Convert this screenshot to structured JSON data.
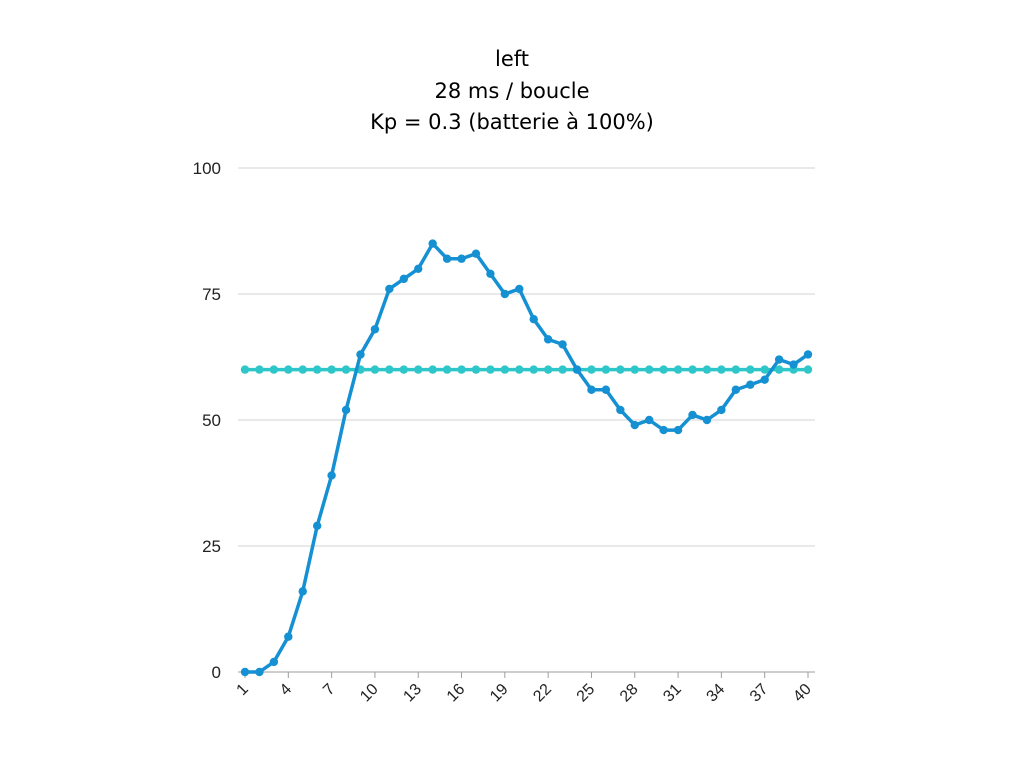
{
  "chart_data": {
    "type": "line",
    "title": [
      "left",
      "28 ms / boucle",
      "Kp = 0.3 (batterie à 100%)"
    ],
    "xlabel": "",
    "ylabel": "",
    "x": [
      1,
      2,
      3,
      4,
      5,
      6,
      7,
      8,
      9,
      10,
      11,
      12,
      13,
      14,
      15,
      16,
      17,
      18,
      19,
      20,
      21,
      22,
      23,
      24,
      25,
      26,
      27,
      28,
      29,
      30,
      31,
      32,
      33,
      34,
      35,
      36,
      37,
      38,
      39,
      40
    ],
    "x_tick_labels": [
      "1",
      "4",
      "7",
      "10",
      "13",
      "16",
      "19",
      "22",
      "25",
      "28",
      "31",
      "34",
      "37",
      "40"
    ],
    "ylim": [
      0,
      100
    ],
    "y_ticks": [
      0,
      25,
      50,
      75,
      100
    ],
    "grid": "horizontal",
    "legend": "none",
    "series": [
      {
        "color": "#1590d2",
        "values": [
          0,
          0,
          2,
          7,
          16,
          29,
          39,
          52,
          63,
          68,
          76,
          78,
          80,
          85,
          82,
          82,
          83,
          79,
          75,
          76,
          70,
          66,
          65,
          60,
          56,
          56,
          52,
          49,
          50,
          48,
          48,
          51,
          50,
          52,
          56,
          57,
          58,
          62,
          61,
          63
        ]
      },
      {
        "color": "#2ec6c9",
        "values": [
          60,
          60,
          60,
          60,
          60,
          60,
          60,
          60,
          60,
          60,
          60,
          60,
          60,
          60,
          60,
          60,
          60,
          60,
          60,
          60,
          60,
          60,
          60,
          60,
          60,
          60,
          60,
          60,
          60,
          60,
          60,
          60,
          60,
          60,
          60,
          60,
          60,
          60,
          60,
          60
        ]
      }
    ]
  }
}
